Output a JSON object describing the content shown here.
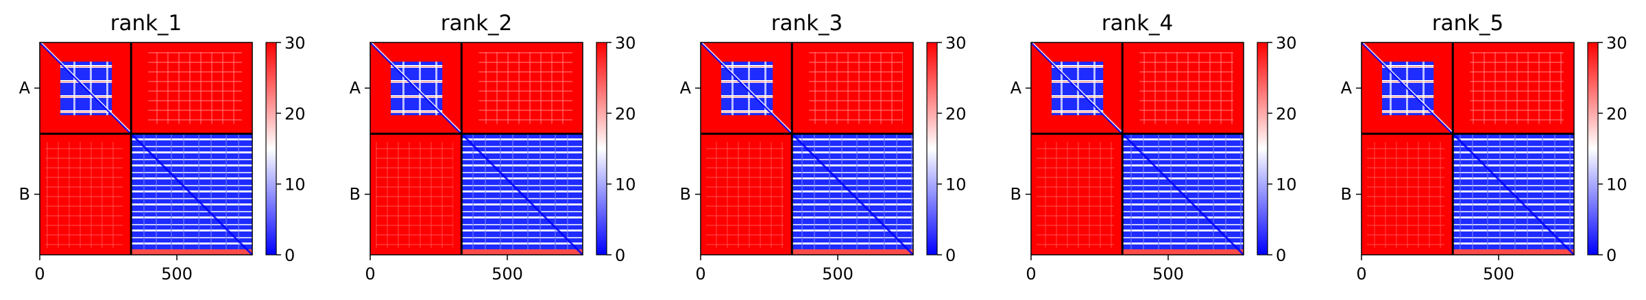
{
  "chart_data": {
    "type": "heatmap",
    "colormap": {
      "low": "#0000ff",
      "mid": "#ffffff",
      "high": "#ff0000"
    },
    "color_range": [
      0,
      30
    ],
    "colorbar_ticks": [
      "0",
      "10",
      "20",
      "30"
    ],
    "x_ticks": [
      {
        "value": 0,
        "label": "0"
      },
      {
        "value": 500,
        "label": "500"
      }
    ],
    "x_range": [
      0,
      775
    ],
    "y_range": [
      0,
      775
    ],
    "chain_boundary": 333,
    "chains": [
      {
        "label": "A",
        "start": 0,
        "end": 333
      },
      {
        "label": "B",
        "start": 333,
        "end": 775
      }
    ],
    "panels": [
      {
        "title": "rank_1"
      },
      {
        "title": "rank_2"
      },
      {
        "title": "rank_3"
      },
      {
        "title": "rank_4"
      },
      {
        "title": "rank_5"
      }
    ]
  }
}
